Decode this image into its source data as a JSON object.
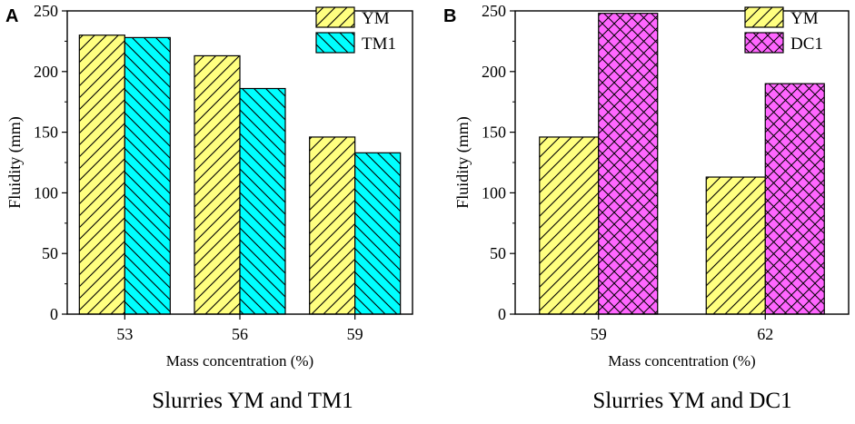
{
  "chart_data": [
    {
      "type": "bar",
      "panel_label": "A",
      "title": "",
      "caption": "Slurries YM and TM1",
      "xlabel": "Mass concentration (%)",
      "ylabel": "Fluidity (mm)",
      "ylim": [
        0,
        250
      ],
      "yticks": [
        0,
        50,
        100,
        150,
        200,
        250
      ],
      "categories": [
        "53",
        "56",
        "59"
      ],
      "legend_position": "top-right",
      "series": [
        {
          "name": "YM",
          "values": [
            230,
            213,
            146
          ],
          "color": "#ffff80",
          "pattern": "diagonal-forward"
        },
        {
          "name": "TM1",
          "values": [
            228,
            186,
            133
          ],
          "color": "#00ffff",
          "pattern": "diagonal-backward"
        }
      ]
    },
    {
      "type": "bar",
      "panel_label": "B",
      "title": "",
      "caption": "Slurries YM and DC1",
      "xlabel": "Mass concentration (%)",
      "ylabel": "Fluidity (mm)",
      "ylim": [
        0,
        250
      ],
      "yticks": [
        0,
        50,
        100,
        150,
        200,
        250
      ],
      "categories": [
        "59",
        "62"
      ],
      "legend_position": "top-right",
      "series": [
        {
          "name": "YM",
          "values": [
            146,
            113
          ],
          "color": "#ffff80",
          "pattern": "diagonal-forward"
        },
        {
          "name": "DC1",
          "values": [
            248,
            190
          ],
          "color": "#ff66ff",
          "pattern": "crosshatch"
        }
      ]
    }
  ]
}
